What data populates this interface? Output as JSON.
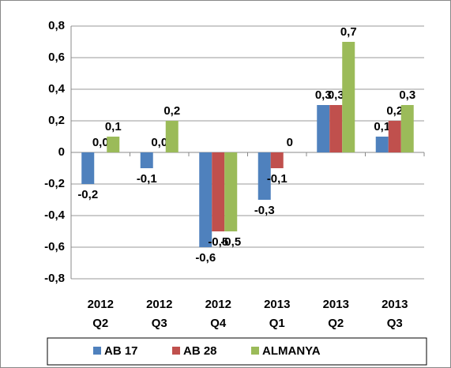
{
  "chart_data": {
    "type": "bar",
    "categories": [
      "2012 Q2",
      "2012 Q3",
      "2012 Q4",
      "2013 Q1",
      "2013 Q2",
      "2013 Q3"
    ],
    "series": [
      {
        "name": "AB 17",
        "color": "#4f81bd",
        "values": [
          -0.2,
          -0.1,
          -0.6,
          -0.3,
          0.3,
          0.1
        ],
        "value_labels": [
          "-0,2",
          "-0,1",
          "-0,6",
          "-0,3",
          "0,3",
          "0,1"
        ]
      },
      {
        "name": "AB 28",
        "color": "#c0504d",
        "values": [
          0.0,
          0.0,
          -0.5,
          -0.1,
          0.3,
          0.2
        ],
        "value_labels": [
          "0,0",
          "0,0",
          "-0,5",
          "-0,1",
          "0,3",
          "0,2"
        ]
      },
      {
        "name": "ALMANYA",
        "color": "#9bbb59",
        "values": [
          0.1,
          0.2,
          -0.5,
          0,
          0.7,
          0.3
        ],
        "value_labels": [
          "0,1",
          "0,2",
          "-0,5",
          "0",
          "0,7",
          "0,3"
        ]
      }
    ],
    "ylim": [
      -0.8,
      0.8
    ],
    "yticks": [
      {
        "value": -0.8,
        "label": "-0,8"
      },
      {
        "value": -0.6,
        "label": "-0,6"
      },
      {
        "value": -0.4,
        "label": "-0,4"
      },
      {
        "value": -0.2,
        "label": "-0,2"
      },
      0,
      {
        "value": 0.2,
        "label": "0,2"
      },
      {
        "value": 0.4,
        "label": "0,4"
      },
      {
        "value": 0.6,
        "label": "0,6"
      },
      {
        "value": 0.8,
        "label": "0,8"
      }
    ],
    "grid": true,
    "legend": "bottom"
  }
}
